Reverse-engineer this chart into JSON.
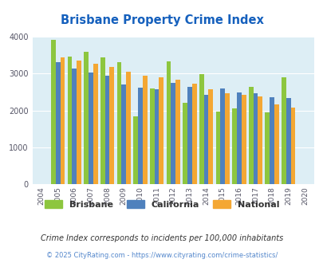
{
  "title": "Brisbane Property Crime Index",
  "years": [
    2004,
    2005,
    2006,
    2007,
    2008,
    2009,
    2010,
    2011,
    2012,
    2013,
    2014,
    2015,
    2016,
    2017,
    2018,
    2019,
    2020
  ],
  "brisbane": [
    null,
    3920,
    3470,
    3600,
    3440,
    3310,
    1840,
    2600,
    3330,
    2200,
    2980,
    1980,
    2050,
    2640,
    1940,
    2890,
    null
  ],
  "california": [
    null,
    3310,
    3140,
    3020,
    2940,
    2710,
    2610,
    2570,
    2750,
    2640,
    2430,
    2600,
    2490,
    2470,
    2360,
    2340,
    null
  ],
  "national": [
    null,
    3440,
    3360,
    3260,
    3190,
    3050,
    2940,
    2900,
    2840,
    2720,
    2570,
    2460,
    2430,
    2390,
    2160,
    2080,
    null
  ],
  "brisbane_color": "#8dc63f",
  "california_color": "#4f81bd",
  "national_color": "#f4a733",
  "fig_bg_color": "#ffffff",
  "plot_bg_color": "#ddeef5",
  "title_color": "#1560bd",
  "ylim": [
    0,
    4000
  ],
  "yticks": [
    0,
    1000,
    2000,
    3000,
    4000
  ],
  "legend_labels": [
    "Brisbane",
    "California",
    "National"
  ],
  "footnote1": "Crime Index corresponds to incidents per 100,000 inhabitants",
  "footnote2": "© 2025 CityRating.com - https://www.cityrating.com/crime-statistics/",
  "footnote1_color": "#333333",
  "footnote2_color": "#5588cc"
}
